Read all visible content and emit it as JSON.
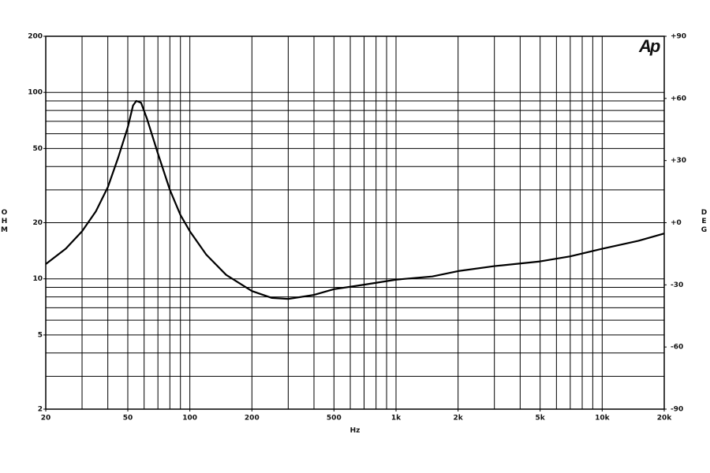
{
  "chart_data": {
    "type": "line",
    "logo": "Ap",
    "xlabel": "Hz",
    "ylabel": "OHM",
    "y2label": "DEG",
    "xscale": "log",
    "yscale": "log",
    "xlim": [
      20,
      20000
    ],
    "ylim": [
      2,
      200
    ],
    "y2lim": [
      -90,
      90
    ],
    "xticks": [
      20,
      50,
      100,
      200,
      500,
      {
        "value": 1000,
        "label": "1k"
      },
      {
        "value": 2000,
        "label": "2k"
      },
      {
        "value": 5000,
        "label": "5k"
      },
      {
        "value": 10000,
        "label": "10k"
      },
      {
        "value": 20000,
        "label": "20k"
      }
    ],
    "yticks": [
      2,
      5,
      10,
      20,
      50,
      100,
      200
    ],
    "y2ticks": [
      {
        "value": 90,
        "label": "+90"
      },
      {
        "value": 60,
        "label": "+60"
      },
      {
        "value": 30,
        "label": "+30"
      },
      {
        "value": 0,
        "label": "+0"
      },
      {
        "value": -30,
        "label": "-30"
      },
      {
        "value": -60,
        "label": "-60"
      },
      {
        "value": -90,
        "label": "-90"
      }
    ],
    "xgrid": [
      20,
      30,
      40,
      50,
      60,
      70,
      80,
      90,
      100,
      200,
      300,
      400,
      500,
      600,
      700,
      800,
      900,
      1000,
      2000,
      3000,
      4000,
      5000,
      6000,
      7000,
      8000,
      9000,
      10000,
      20000
    ],
    "ygrid": [
      2,
      3,
      4,
      5,
      6,
      7,
      8,
      9,
      10,
      20,
      30,
      40,
      50,
      60,
      70,
      80,
      90,
      100,
      200
    ],
    "grid": true,
    "color": "#000000",
    "x": [
      20,
      25,
      30,
      35,
      40,
      45,
      50,
      53,
      55,
      58,
      62,
      70,
      80,
      90,
      100,
      120,
      150,
      200,
      250,
      300,
      400,
      500,
      700,
      1000,
      1500,
      2000,
      3000,
      5000,
      7000,
      10000,
      15000,
      20000
    ],
    "values": [
      12,
      14.5,
      18,
      23,
      31,
      45,
      65,
      85,
      90,
      88,
      72,
      47,
      30,
      22,
      18,
      13.5,
      10.5,
      8.6,
      7.9,
      7.8,
      8.2,
      8.8,
      9.3,
      9.9,
      10.3,
      11,
      11.7,
      12.4,
      13.2,
      14.5,
      16,
      17.5
    ]
  }
}
